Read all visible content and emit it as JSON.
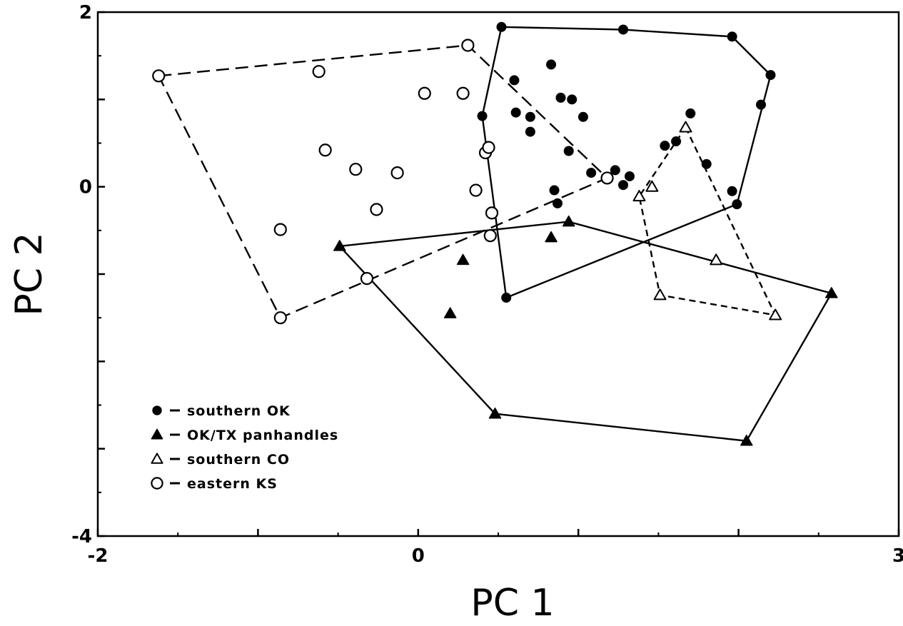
{
  "chart_data": {
    "type": "scatter",
    "title": "",
    "xlabel": "PC 1",
    "ylabel": "PC 2",
    "xlim": [
      -2,
      3
    ],
    "ylim": [
      -4,
      2
    ],
    "x_tick_labels": [
      "-2",
      "0",
      "3"
    ],
    "y_tick_labels": [
      "2",
      "0",
      "-4"
    ],
    "legend_position": "bottom-left",
    "series": [
      {
        "name": "southern OK",
        "marker": "filled-circle",
        "hull_style": "solid",
        "points": [
          [
            0.52,
            1.83
          ],
          [
            1.28,
            1.8
          ],
          [
            1.96,
            1.72
          ],
          [
            2.2,
            1.28
          ],
          [
            2.14,
            0.94
          ],
          [
            0.6,
            1.22
          ],
          [
            0.83,
            1.4
          ],
          [
            0.89,
            1.02
          ],
          [
            0.96,
            1.0
          ],
          [
            1.03,
            0.8
          ],
          [
            0.61,
            0.85
          ],
          [
            0.7,
            0.8
          ],
          [
            0.7,
            0.63
          ],
          [
            0.4,
            0.81
          ],
          [
            0.94,
            0.41
          ],
          [
            1.08,
            0.16
          ],
          [
            1.23,
            0.19
          ],
          [
            1.28,
            0.02
          ],
          [
            1.32,
            0.12
          ],
          [
            1.54,
            0.47
          ],
          [
            1.61,
            0.52
          ],
          [
            1.7,
            0.84
          ],
          [
            1.8,
            0.26
          ],
          [
            1.96,
            -0.05
          ],
          [
            1.99,
            -0.2
          ],
          [
            0.85,
            -0.04
          ],
          [
            0.87,
            -0.19
          ],
          [
            0.55,
            -1.27
          ]
        ],
        "hull": [
          [
            0.52,
            1.83
          ],
          [
            1.28,
            1.8
          ],
          [
            1.96,
            1.72
          ],
          [
            2.2,
            1.28
          ],
          [
            1.99,
            -0.2
          ],
          [
            0.55,
            -1.27
          ],
          [
            0.4,
            0.81
          ]
        ]
      },
      {
        "name": "OK/TX panhandles",
        "marker": "filled-triangle",
        "hull_style": "solid",
        "points": [
          [
            -0.49,
            -0.68
          ],
          [
            0.94,
            -0.4
          ],
          [
            0.83,
            -0.58
          ],
          [
            0.28,
            -0.84
          ],
          [
            0.2,
            -1.45
          ],
          [
            2.58,
            -1.22
          ],
          [
            2.05,
            -2.91
          ],
          [
            0.48,
            -2.6
          ]
        ],
        "hull": [
          [
            -0.49,
            -0.68
          ],
          [
            0.94,
            -0.4
          ],
          [
            2.58,
            -1.22
          ],
          [
            2.05,
            -2.91
          ],
          [
            0.48,
            -2.6
          ]
        ]
      },
      {
        "name": "southern CO",
        "marker": "open-triangle",
        "hull_style": "short-dash",
        "points": [
          [
            1.67,
            0.68
          ],
          [
            1.38,
            -0.11
          ],
          [
            1.46,
            0.0
          ],
          [
            1.86,
            -0.84
          ],
          [
            1.51,
            -1.24
          ],
          [
            2.23,
            -1.47
          ]
        ],
        "hull": [
          [
            1.67,
            0.68
          ],
          [
            2.23,
            -1.47
          ],
          [
            1.51,
            -1.24
          ],
          [
            1.38,
            -0.11
          ]
        ]
      },
      {
        "name": "eastern KS",
        "marker": "open-circle",
        "hull_style": "long-dash",
        "points": [
          [
            -1.62,
            1.27
          ],
          [
            0.31,
            1.62
          ],
          [
            -0.62,
            1.32
          ],
          [
            0.04,
            1.07
          ],
          [
            0.28,
            1.07
          ],
          [
            -0.58,
            0.42
          ],
          [
            -0.39,
            0.2
          ],
          [
            -0.13,
            0.16
          ],
          [
            0.42,
            0.39
          ],
          [
            0.44,
            0.45
          ],
          [
            0.36,
            -0.04
          ],
          [
            0.46,
            -0.3
          ],
          [
            -0.26,
            -0.26
          ],
          [
            -0.86,
            -0.49
          ],
          [
            0.45,
            -0.56
          ],
          [
            -0.32,
            -1.05
          ],
          [
            -0.86,
            -1.5
          ],
          [
            1.18,
            0.1
          ]
        ],
        "hull": [
          [
            -1.62,
            1.27
          ],
          [
            0.31,
            1.62
          ],
          [
            1.18,
            0.1
          ],
          [
            -0.86,
            -1.5
          ]
        ]
      }
    ]
  }
}
